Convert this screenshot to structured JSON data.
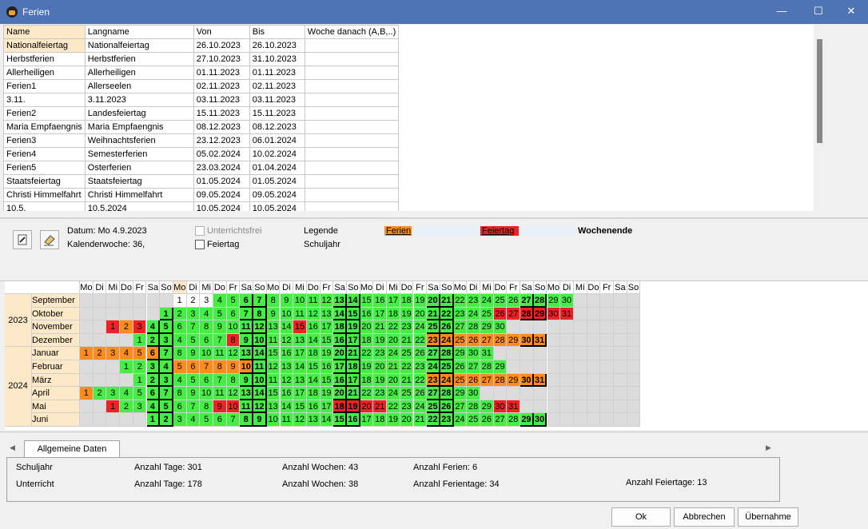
{
  "window": {
    "title": "Ferien",
    "minimize": "—",
    "maximize": "☐",
    "close": "✕"
  },
  "holidays": {
    "headers": [
      "Name",
      "Langname",
      "Von",
      "Bis",
      "Woche danach (A,B,..)"
    ],
    "rows": [
      [
        "Nationalfeiertag",
        "Nationalfeiertag",
        "26.10.2023",
        "26.10.2023",
        ""
      ],
      [
        "Herbstferien",
        "Herbstferien",
        "27.10.2023",
        "31.10.2023",
        ""
      ],
      [
        "Allerheiligen",
        "Allerheiligen",
        "01.11.2023",
        "01.11.2023",
        ""
      ],
      [
        "Ferien1",
        "Allerseelen",
        "02.11.2023",
        "02.11.2023",
        ""
      ],
      [
        "3.11.",
        "3.11.2023",
        "03.11.2023",
        "03.11.2023",
        ""
      ],
      [
        "Ferien2",
        "Landesfeiertag",
        "15.11.2023",
        "15.11.2023",
        ""
      ],
      [
        "Maria Empfaengnis",
        "Maria Empfaengnis",
        "08.12.2023",
        "08.12.2023",
        ""
      ],
      [
        "Ferien3",
        "Weihnachtsferien",
        "23.12.2023",
        "06.01.2024",
        ""
      ],
      [
        "Ferien4",
        "Semesterferien",
        "05.02.2024",
        "10.02.2024",
        ""
      ],
      [
        "Ferien5",
        "Osterferien",
        "23.03.2024",
        "01.04.2024",
        ""
      ],
      [
        "Staatsfeiertag",
        "Staatsfeiertag",
        "01.05.2024",
        "01.05.2024",
        ""
      ],
      [
        "Christi Himmelfahrt",
        "Christi Himmelfahrt",
        "09.05.2024",
        "09.05.2024",
        ""
      ],
      [
        "10.5.",
        "10.5.2024",
        "10.05.2024",
        "10.05.2024",
        ""
      ]
    ]
  },
  "info": {
    "datum": "Datum: Mo 4.9.2023",
    "kw": "Kalenderwoche: 36,",
    "unterrichtsfrei": "Unterrichtsfrei",
    "feiertag_cb": "Feiertag",
    "legende": "Legende",
    "schuljahr": "Schuljahr",
    "leg_ferien": "Ferien",
    "leg_feiertag": "Feiertag",
    "leg_wochenende": "Wochenende"
  },
  "colors": {
    "school": "#44ee44",
    "ferien": "#ff8c1a",
    "feiertag": "#ee2222",
    "empty": "#dcdcdc",
    "year": "#fde9c8",
    "nowork": "#ffffff"
  },
  "calendar": {
    "weekday_header": [
      "Mo",
      "Di",
      "Mi",
      "Do",
      "Fr",
      "Sa",
      "So",
      "Mo",
      "Di",
      "Mi",
      "Do",
      "Fr",
      "Sa",
      "So",
      "Mo",
      "Di",
      "Mi",
      "Do",
      "Fr",
      "Sa",
      "So",
      "Mo",
      "Di",
      "Mi",
      "Do",
      "Fr",
      "Sa",
      "So",
      "Mo",
      "Di",
      "Mi",
      "Do",
      "Fr",
      "Sa",
      "So",
      "Mo",
      "Di",
      "Mi",
      "Do",
      "Fr",
      "Sa",
      "So"
    ],
    "years": [
      {
        "label": "2023",
        "rows": 4
      },
      {
        "label": "2024",
        "rows": 6
      }
    ],
    "months": [
      {
        "name": "September",
        "offset": 7,
        "days": 30,
        "ferien": [],
        "feiertag": [],
        "before": 3
      },
      {
        "name": "Oktober",
        "offset": 6,
        "days": 31,
        "ferien": [],
        "feiertag": [
          26,
          27,
          28,
          29,
          30,
          31
        ]
      },
      {
        "name": "November",
        "offset": 2,
        "days": 30,
        "ferien": [
          2
        ],
        "feiertag": [
          1,
          3,
          15
        ]
      },
      {
        "name": "Dezember",
        "offset": 4,
        "days": 31,
        "ferien": [
          23,
          24,
          25,
          26,
          27,
          28,
          29,
          30,
          31
        ],
        "feiertag": [
          8
        ]
      },
      {
        "name": "Januar",
        "offset": 0,
        "days": 31,
        "ferien": [
          1,
          2,
          3,
          4,
          5,
          6
        ],
        "feiertag": []
      },
      {
        "name": "Februar",
        "offset": 3,
        "days": 29,
        "ferien": [
          5,
          6,
          7,
          8,
          9,
          10
        ],
        "feiertag": []
      },
      {
        "name": "März",
        "offset": 4,
        "days": 31,
        "ferien": [
          23,
          24,
          25,
          26,
          27,
          28,
          29,
          30,
          31
        ],
        "feiertag": []
      },
      {
        "name": "April",
        "offset": 0,
        "days": 30,
        "ferien": [
          1
        ],
        "feiertag": []
      },
      {
        "name": "Mai",
        "offset": 2,
        "days": 31,
        "ferien": [],
        "feiertag": [
          1,
          9,
          10,
          18,
          19,
          20,
          21,
          30,
          31
        ]
      },
      {
        "name": "Juni",
        "offset": 5,
        "days": 30,
        "ferien": [],
        "feiertag": []
      }
    ]
  },
  "tab": {
    "label": "Allgemeine Daten"
  },
  "stats": {
    "schuljahr": "Schuljahr",
    "unterricht": "Unterricht",
    "tage1": "Anzahl Tage: 301",
    "wochen1": "Anzahl Wochen: 43",
    "ferien1": "Anzahl Ferien: 6",
    "tage2": "Anzahl Tage: 178",
    "wochen2": "Anzahl Wochen: 38",
    "ferientage": "Anzahl Ferientage: 34",
    "feiertage": "Anzahl Feiertage: 13"
  },
  "buttons": {
    "ok": "Ok",
    "abbrechen": "Abbrechen",
    "uebernahme": "Übernahme"
  }
}
